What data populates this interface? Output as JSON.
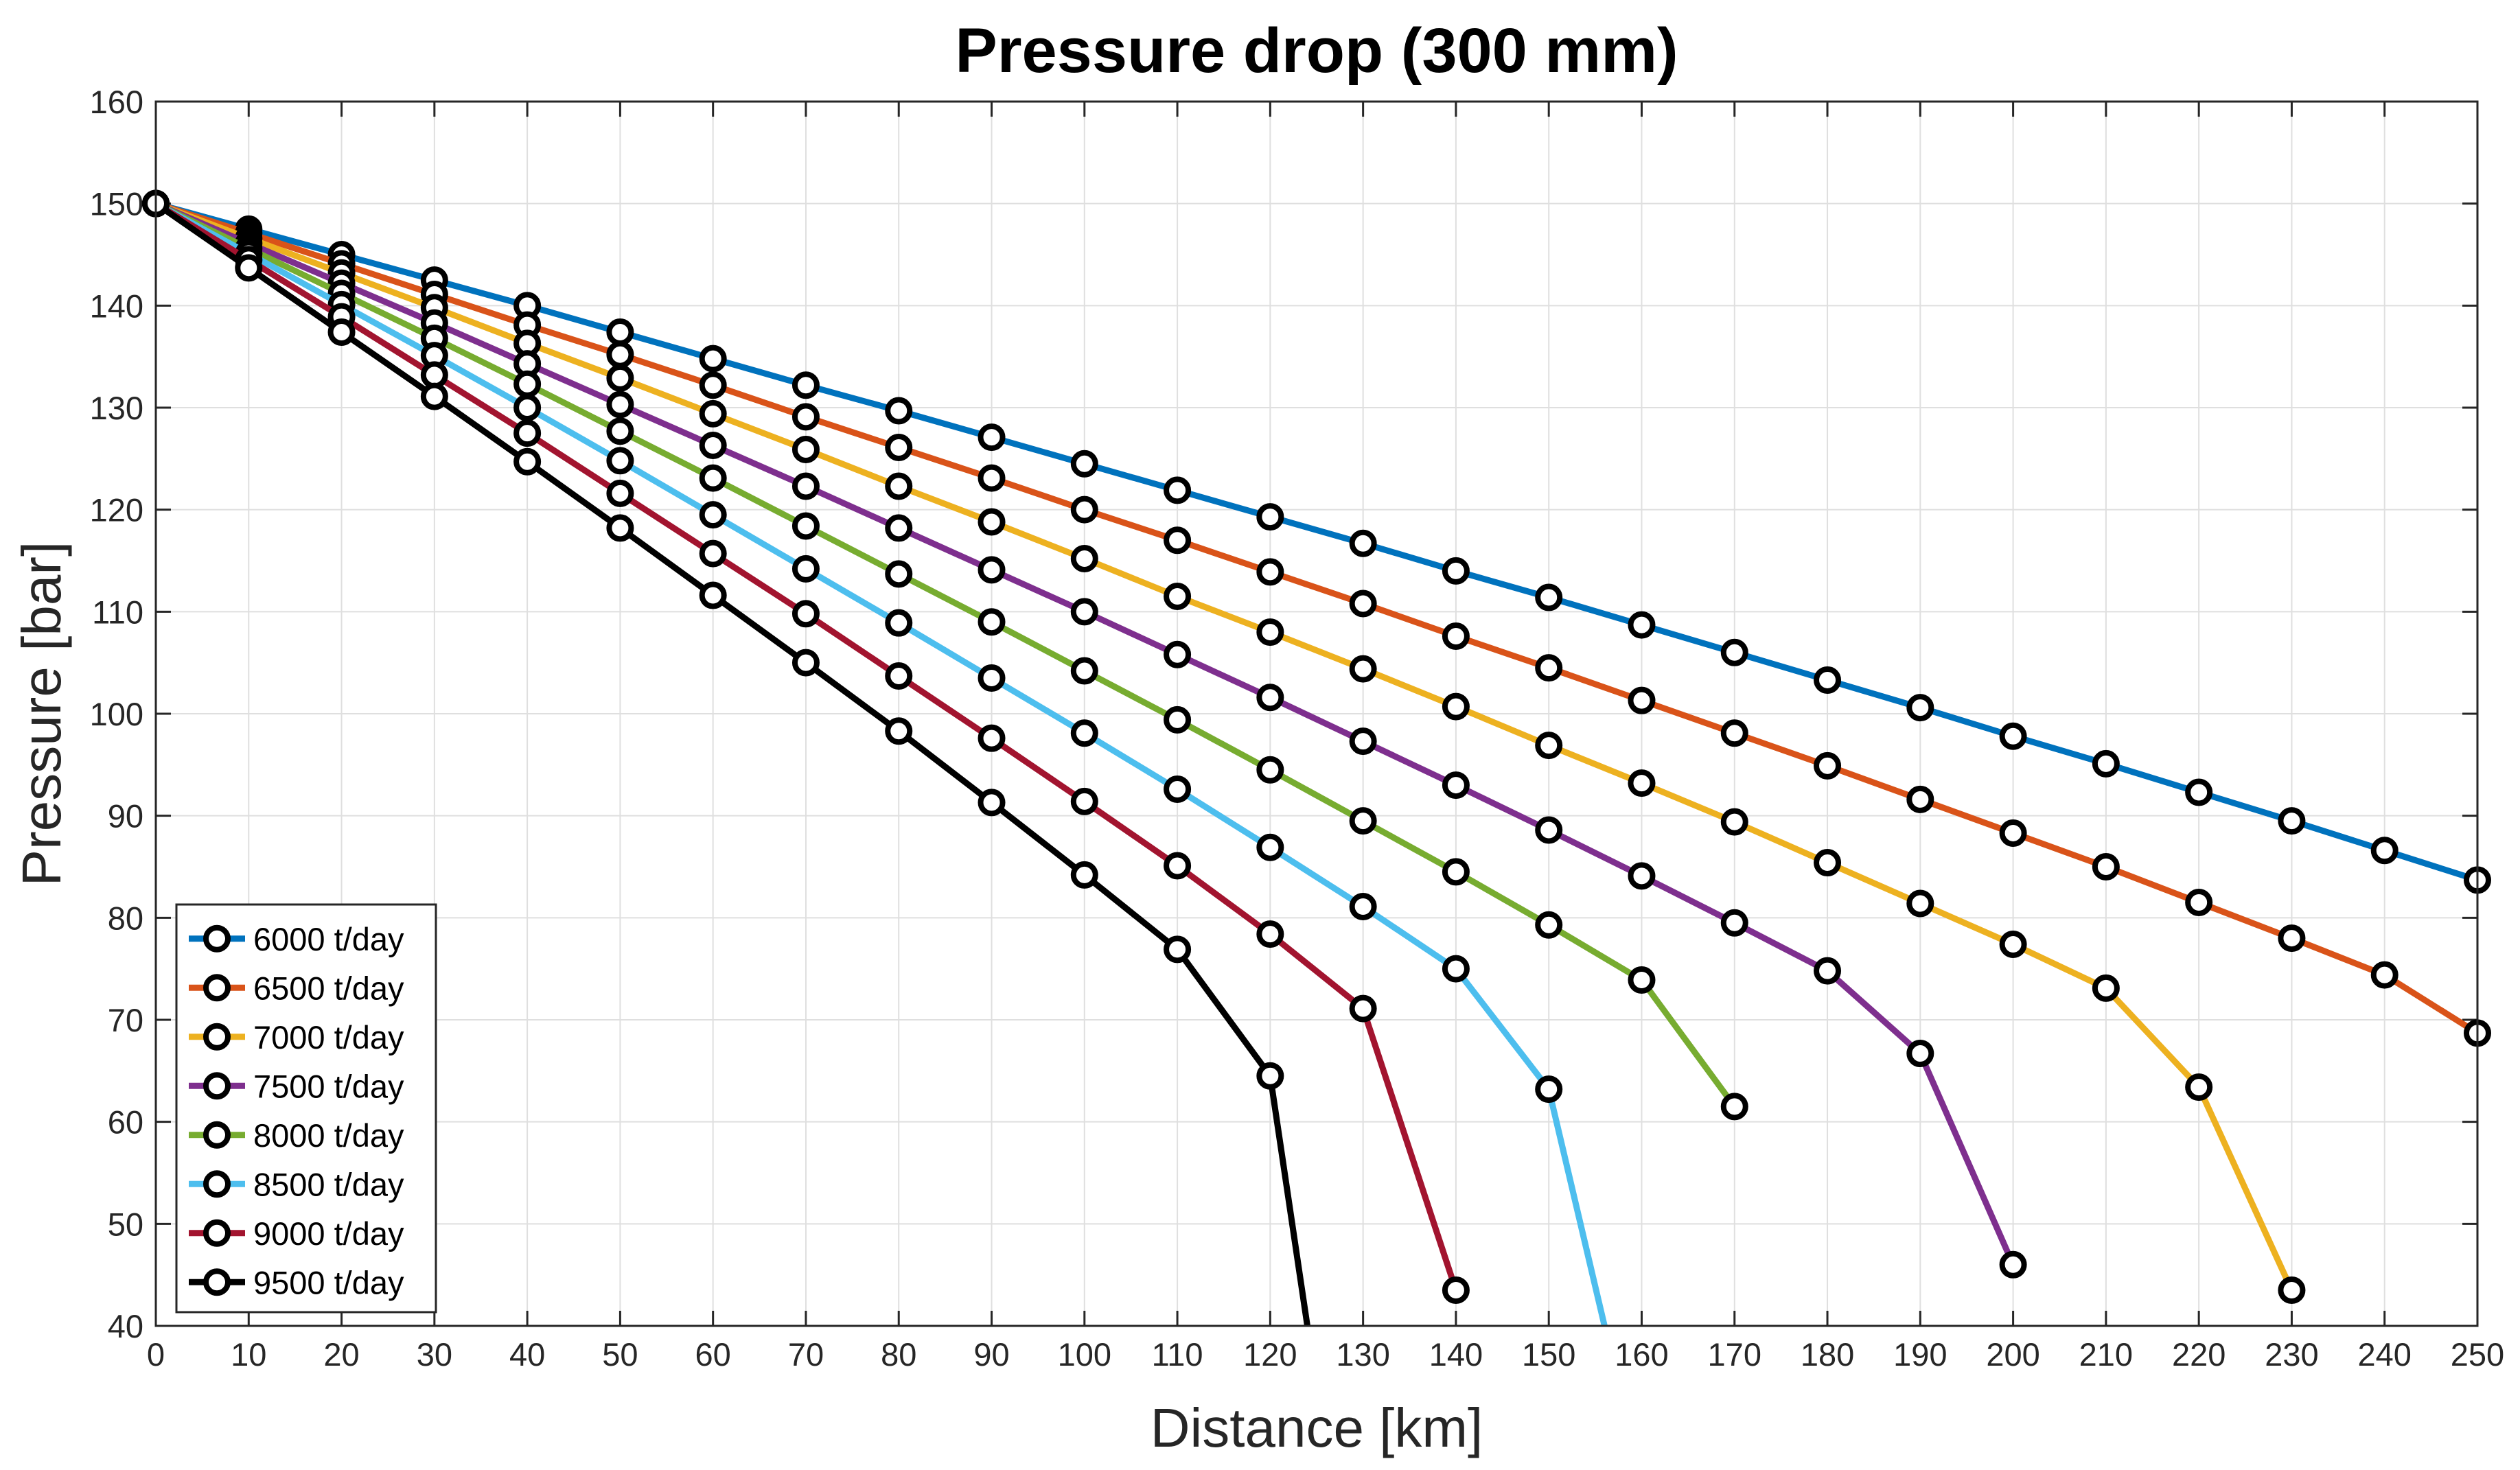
{
  "chart_data": {
    "type": "line",
    "title": "Pressure drop (300 mm)",
    "xlabel": "Distance [km]",
    "ylabel": "Pressure [bar]",
    "xlim": [
      0,
      250
    ],
    "ylim": [
      40,
      160
    ],
    "x_ticks": [
      0,
      10,
      20,
      30,
      40,
      50,
      60,
      70,
      80,
      90,
      100,
      110,
      120,
      130,
      140,
      150,
      160,
      170,
      180,
      190,
      200,
      210,
      220,
      230,
      240,
      250
    ],
    "y_ticks": [
      40,
      50,
      60,
      70,
      80,
      90,
      100,
      110,
      120,
      130,
      140,
      150,
      160
    ],
    "grid": true,
    "legend_position": "bottom-left",
    "marker": "circle",
    "series": [
      {
        "name": "6000 t/day",
        "color": "#0072BD",
        "x": [
          0,
          10,
          20,
          30,
          40,
          50,
          60,
          70,
          80,
          90,
          100,
          110,
          120,
          130,
          140,
          150,
          160,
          170,
          180,
          190,
          200,
          210,
          220,
          230,
          240,
          250
        ],
        "values": [
          150,
          147.5,
          145,
          142.5,
          140,
          137.4,
          134.8,
          132.2,
          129.7,
          127.1,
          124.5,
          121.9,
          119.3,
          116.7,
          114,
          111.4,
          108.7,
          106,
          103.3,
          100.6,
          97.8,
          95.1,
          92.3,
          89.5,
          86.6,
          83.7
        ]
      },
      {
        "name": "6500 t/day",
        "color": "#D95319",
        "x": [
          0,
          10,
          20,
          30,
          40,
          50,
          60,
          70,
          80,
          90,
          100,
          110,
          120,
          130,
          140,
          150,
          160,
          170,
          180,
          190,
          200,
          210,
          220,
          230,
          240,
          250
        ],
        "values": [
          150,
          147.1,
          144.1,
          141.1,
          138.1,
          135.2,
          132.2,
          129.1,
          126.1,
          123.1,
          120.0,
          117.0,
          113.9,
          110.8,
          107.6,
          104.5,
          101.3,
          98.1,
          94.9,
          91.6,
          88.3,
          85.0,
          81.5,
          78.0,
          74.4,
          68.7
        ]
      },
      {
        "name": "7000 t/day",
        "color": "#EDB120",
        "x": [
          0,
          10,
          20,
          30,
          40,
          50,
          60,
          70,
          80,
          90,
          100,
          110,
          120,
          130,
          140,
          150,
          160,
          170,
          180,
          190,
          200,
          210,
          220,
          230
        ],
        "values": [
          150,
          146.6,
          143.2,
          139.8,
          136.3,
          132.9,
          129.4,
          125.9,
          122.3,
          118.8,
          115.2,
          111.5,
          108.0,
          104.4,
          100.7,
          96.9,
          93.2,
          89.4,
          85.4,
          81.4,
          77.4,
          73.1,
          63.4,
          43.5
        ]
      },
      {
        "name": "7500 t/day",
        "color": "#7E2F8E",
        "x": [
          0,
          10,
          20,
          30,
          40,
          50,
          60,
          70,
          80,
          90,
          100,
          110,
          120,
          130,
          140,
          150,
          160,
          170,
          180,
          190,
          200
        ],
        "values": [
          150,
          146.1,
          142.2,
          138.3,
          134.3,
          130.3,
          126.3,
          122.3,
          118.2,
          114.1,
          110.0,
          105.8,
          101.6,
          97.3,
          93.0,
          88.6,
          84.1,
          79.5,
          74.8,
          66.7,
          46.0
        ]
      },
      {
        "name": "8000 t/day",
        "color": "#77AC30",
        "x": [
          0,
          10,
          20,
          30,
          40,
          50,
          60,
          70,
          80,
          90,
          100,
          110,
          120,
          130,
          140,
          150,
          160,
          170
        ],
        "values": [
          150,
          145.6,
          141.2,
          136.8,
          132.3,
          127.7,
          123.1,
          118.4,
          113.7,
          109.0,
          104.2,
          99.4,
          94.5,
          89.5,
          84.5,
          79.3,
          73.9,
          61.5
        ]
      },
      {
        "name": "8500 t/day",
        "color": "#4DBEEE",
        "x": [
          0,
          10,
          20,
          30,
          40,
          50,
          60,
          70,
          80,
          90,
          100,
          110,
          120,
          130,
          140,
          150,
          156
        ],
        "values": [
          150,
          145.1,
          140.1,
          135.1,
          130.0,
          124.8,
          119.5,
          114.2,
          108.9,
          103.5,
          98.1,
          92.6,
          86.9,
          81.1,
          75.0,
          63.2,
          40
        ]
      },
      {
        "name": "9000 t/day",
        "color": "#A2142F",
        "x": [
          0,
          10,
          20,
          30,
          40,
          50,
          60,
          70,
          80,
          90,
          100,
          110,
          120,
          130,
          140
        ],
        "values": [
          150,
          144.5,
          138.9,
          133.2,
          127.5,
          121.6,
          115.7,
          109.8,
          103.7,
          97.6,
          91.4,
          85.1,
          78.4,
          71.1,
          43.5
        ]
      },
      {
        "name": "9500 t/day",
        "color": "#000000",
        "x": [
          0,
          10,
          20,
          30,
          40,
          50,
          60,
          70,
          80,
          90,
          100,
          110,
          120,
          124
        ],
        "values": [
          150,
          143.7,
          137.4,
          131.1,
          124.7,
          118.2,
          111.6,
          105.0,
          98.3,
          91.3,
          84.2,
          76.9,
          64.5,
          40
        ]
      }
    ]
  }
}
